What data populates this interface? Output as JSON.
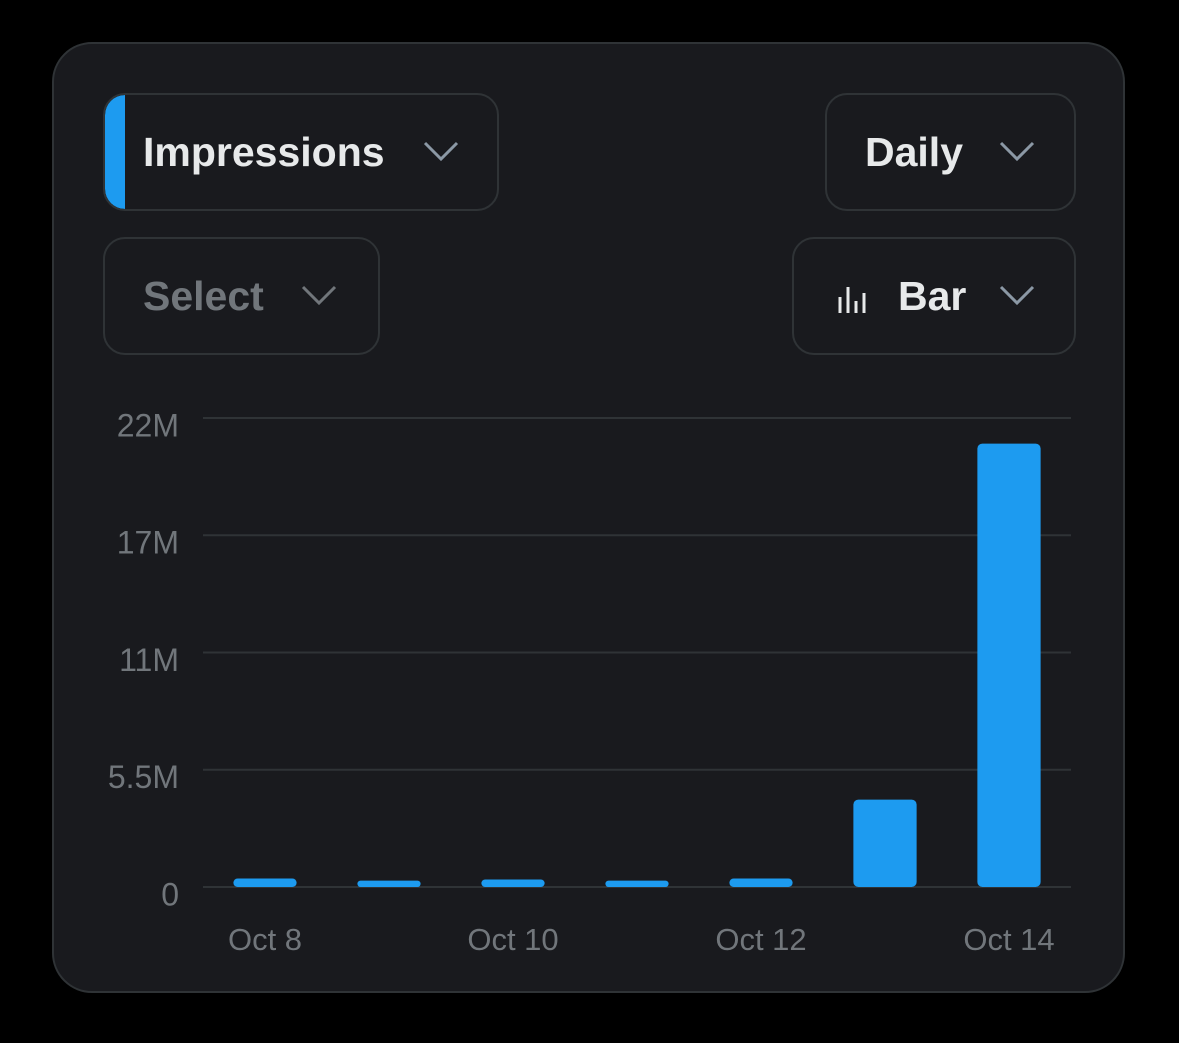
{
  "controls": {
    "metric": "Impressions",
    "interval": "Daily",
    "compare": "Select",
    "chart_style": "Bar"
  },
  "chart_data": {
    "type": "bar",
    "categories": [
      "Oct 8",
      null,
      "Oct 10",
      null,
      "Oct 12",
      null,
      "Oct 14"
    ],
    "values": [
      400000,
      300000,
      350000,
      300000,
      400000,
      4100000,
      20800000
    ],
    "color": "#1d9bf0",
    "ylim": [
      0,
      22000000
    ],
    "yticks": [
      0,
      {
        "value": 5500000,
        "label": "5.5M"
      },
      {
        "value": 11000000,
        "label": "11M"
      },
      {
        "value": 16500000,
        "label": "17M"
      },
      {
        "value": 22000000,
        "label": "22M"
      }
    ],
    "grid": true
  }
}
